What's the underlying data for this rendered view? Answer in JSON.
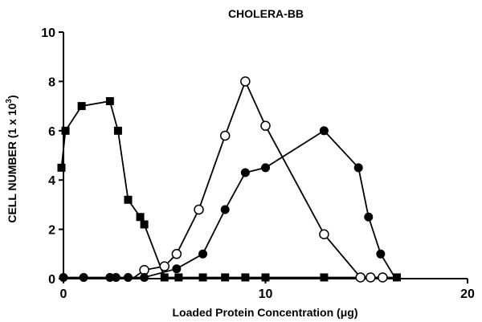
{
  "chart_data": {
    "type": "line",
    "title": "CHOLERA-BB",
    "xlabel": "Loaded Protein Concentration (μg)",
    "ylabel_main": "CELL NUMBER (1 x 10",
    "ylabel_sup": "3",
    "ylabel_end": ")",
    "xlim": [
      0,
      20
    ],
    "ylim": [
      0,
      10
    ],
    "xticks": [
      0,
      10,
      20
    ],
    "yticks": [
      0,
      2,
      4,
      6,
      8,
      10
    ],
    "grid": false,
    "legend": "none",
    "series": [
      {
        "marker": "square-filled",
        "x": [
          -0.1,
          0.1,
          0.9,
          2.3,
          2.7,
          3.2,
          3.8,
          4.0,
          5.0,
          5.7,
          6.9,
          8.0,
          9.0,
          10.0,
          12.9,
          16.5
        ],
        "y": [
          4.5,
          6.0,
          7.0,
          7.2,
          6.0,
          3.2,
          2.5,
          2.2,
          0.05,
          0.05,
          0.05,
          0.05,
          0.05,
          0.05,
          0.05,
          0.05
        ]
      },
      {
        "marker": "circle-open",
        "x": [
          4.0,
          5.0,
          5.6,
          6.7,
          8.0,
          9.0,
          10.0,
          12.9,
          14.7,
          15.2,
          15.8
        ],
        "y": [
          0.35,
          0.5,
          1.0,
          2.8,
          5.8,
          8.0,
          6.2,
          1.8,
          0.05,
          0.05,
          0.05
        ],
        "lead_in": [
          3.5,
          0.05
        ]
      },
      {
        "marker": "circle-filled",
        "x": [
          0.0,
          1.0,
          2.3,
          2.6,
          3.2,
          4.0,
          5.6,
          6.9,
          8.0,
          9.0,
          10.0,
          12.9,
          14.6,
          15.1,
          15.7
        ],
        "y": [
          0.05,
          0.05,
          0.05,
          0.05,
          0.05,
          0.05,
          0.4,
          1.0,
          2.8,
          4.3,
          4.5,
          6.0,
          4.5,
          2.5,
          1.0
        ],
        "lead_out": [
          16.4,
          0.05
        ]
      }
    ]
  }
}
